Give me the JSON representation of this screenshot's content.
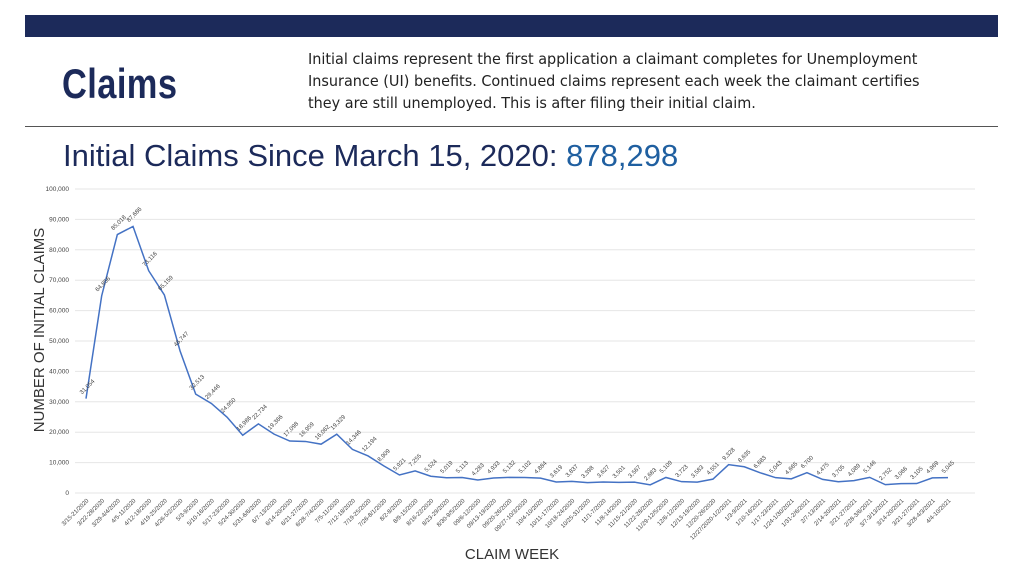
{
  "header": {
    "heading": "Claims",
    "description": "Initial claims represent the first application a claimant completes for Unemployment Insurance (UI) benefits. Continued claims represent each week the claimant certifies they are still unemployed. This is after filing their initial claim.",
    "title_text": "Initial Claims Since March 15, 2020:",
    "title_value": "878,298"
  },
  "colors": {
    "navy": "#1c2a5a",
    "accent": "#1f5fa0",
    "line": "#4472c4"
  },
  "chart_data": {
    "type": "line",
    "title": "",
    "xlabel": "CLAIM WEEK",
    "ylabel": "NUMBER OF INITIAL CLAIMS",
    "ylim": [
      0,
      100000
    ],
    "yticks": [
      0,
      10000,
      20000,
      30000,
      40000,
      50000,
      60000,
      70000,
      80000,
      90000,
      100000
    ],
    "grid": true,
    "data_labels": true,
    "categories": [
      "3/15-21/2020",
      "3/22-28/2020",
      "3/29-4/4/2020",
      "4/5-11/2020",
      "4/12-18/2020",
      "4/19-25/2020",
      "4/26-5/2/2020",
      "5/3-9/2020",
      "5/10-16/2020",
      "5/17-23/2020",
      "5/24-30/2020",
      "5/31-6/6/2020",
      "6/7-13/2020",
      "6/14-20/2020",
      "6/21-27/2020",
      "6/28-7/4/2020",
      "7/5-11/2020",
      "7/12-18/2020",
      "7/19-25/2020",
      "7/26-8/1/2020",
      "8/2-8/2020",
      "8/9-15/2020",
      "8/16-22/2020",
      "8/23-29/2020",
      "8/30-9/5/2020",
      "09/6-12/2020",
      "09/13-19/2020",
      "09/20-26/2020",
      "09/27-10/3/2020",
      "10/4-10/2020",
      "10/11-17/2020",
      "10/18-24/2020",
      "10/25-31/2020",
      "11/1-7/2020",
      "11/8-14/2020",
      "11/15-21/2020",
      "11/22-28/2020",
      "11/29-12/5/2020",
      "12/6-12/2020",
      "12/13-19/2020",
      "12/20-26/2020",
      "12/27/2020-1/2/2021",
      "1/3-9/2021",
      "1/10-16/2021",
      "1/17-23/2021",
      "1/24-1/30/2021",
      "1/31-2/6/2021",
      "2/7-13/2021",
      "2/14-20/2021",
      "2/21-27/2021",
      "2/28-3/6/2021",
      "3/7-3/13/2021",
      "3/14-20/2021",
      "3/21-27/2021",
      "3/28-4/3/2021",
      "4/4-10/2021"
    ],
    "values": [
      31054,
      64856,
      85018,
      87686,
      73116,
      65159,
      46747,
      32513,
      29446,
      24950,
      18986,
      22734,
      19366,
      17098,
      16959,
      16062,
      19329,
      14346,
      12194,
      8909,
      5921,
      7255,
      5524,
      5019,
      5113,
      4283,
      4933,
      5132,
      5102,
      4884,
      3619,
      3837,
      3398,
      3627,
      3501,
      3567,
      2683,
      5109,
      3723,
      3583,
      4551,
      9328,
      8635,
      6683,
      5043,
      4665,
      6700,
      4475,
      3705,
      4089,
      5146,
      2752,
      3066,
      3105,
      4969,
      5045
    ]
  }
}
